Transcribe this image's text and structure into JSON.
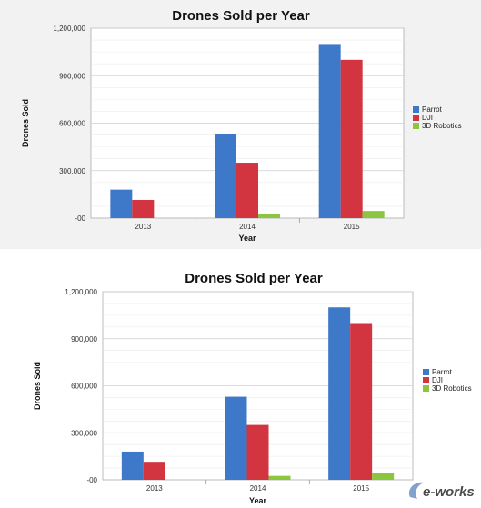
{
  "chart_data": [
    {
      "type": "bar",
      "title": "Drones Sold per Year",
      "xlabel": "Year",
      "ylabel": "Drones Sold",
      "categories": [
        "2013",
        "2014",
        "2015"
      ],
      "series": [
        {
          "name": "Parrot",
          "values": [
            180000,
            530000,
            1100000
          ],
          "color": "#3d78c9"
        },
        {
          "name": "DJI",
          "values": [
            115000,
            350000,
            1000000
          ],
          "color": "#d2353f"
        },
        {
          "name": "3D Robotics",
          "values": [
            0,
            25000,
            45000
          ],
          "color": "#8cc63f"
        }
      ],
      "ylim": [
        0,
        1200000
      ],
      "yticks": [
        "-00",
        "300,000",
        "600,000",
        "900,000",
        "1,200,000"
      ],
      "grid": true,
      "legend": "right"
    },
    {
      "type": "bar",
      "title": "Drones Sold per Year",
      "xlabel": "Year",
      "ylabel": "Drones Sold",
      "categories": [
        "2013",
        "2014",
        "2015"
      ],
      "series": [
        {
          "name": "Parrot",
          "values": [
            180000,
            530000,
            1100000
          ],
          "color": "#3d78c9"
        },
        {
          "name": "DJI",
          "values": [
            115000,
            350000,
            1000000
          ],
          "color": "#d2353f"
        },
        {
          "name": "3D Robotics",
          "values": [
            0,
            25000,
            45000
          ],
          "color": "#8cc63f"
        }
      ],
      "ylim": [
        0,
        1200000
      ],
      "yticks": [
        "-00",
        "300,000",
        "600,000",
        "900,000",
        "1,200,000"
      ],
      "grid": true,
      "legend": "right"
    }
  ],
  "watermark": {
    "text": "e-works"
  }
}
